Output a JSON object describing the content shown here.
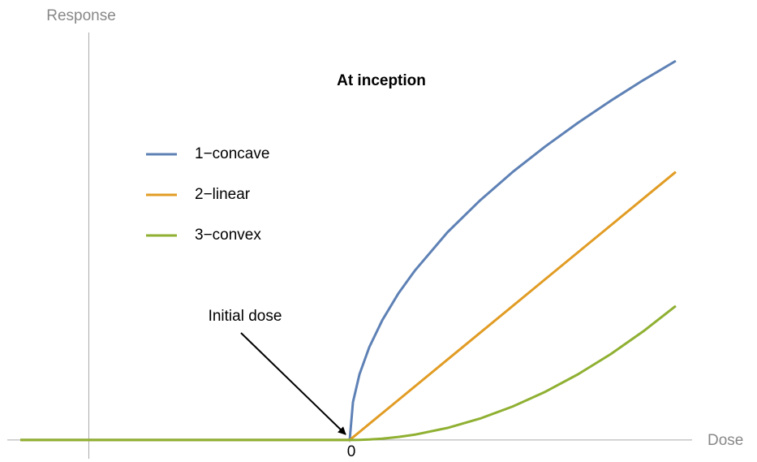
{
  "chart_data": {
    "type": "line",
    "title": "At inception",
    "xlabel": "Dose",
    "ylabel": "Response",
    "annotations": [
      {
        "text": "Initial dose"
      }
    ],
    "x": [
      -1.01,
      0,
      0.01,
      0.03,
      0.06,
      0.1,
      0.15,
      0.2,
      0.3,
      0.4,
      0.5,
      0.6,
      0.7,
      0.8,
      0.9,
      1
    ],
    "series": [
      {
        "name": "1−concave",
        "color": "#5e81b5",
        "values": [
          0,
          0,
          0.141,
          0.245,
          0.346,
          0.447,
          0.548,
          0.632,
          0.775,
          0.894,
          1,
          1.095,
          1.183,
          1.265,
          1.342,
          1.414
        ]
      },
      {
        "name": "2−linear",
        "color": "#e19c24",
        "values": [
          0,
          0,
          0.01,
          0.03,
          0.06,
          0.1,
          0.15,
          0.2,
          0.3,
          0.4,
          0.5,
          0.6,
          0.7,
          0.8,
          0.9,
          1
        ]
      },
      {
        "name": "3−convex",
        "color": "#8fb032",
        "values": [
          0,
          0,
          5e-05,
          0.00045,
          0.0018,
          0.005,
          0.01125,
          0.02,
          0.045,
          0.08,
          0.125,
          0.18,
          0.245,
          0.32,
          0.405,
          0.5
        ]
      }
    ],
    "xlim": [
      -1.05,
      1.05
    ],
    "ylim": [
      -0.07,
      1.52
    ],
    "xticks": [
      0
    ],
    "y_axis_at_x": -0.8,
    "grid": false
  }
}
